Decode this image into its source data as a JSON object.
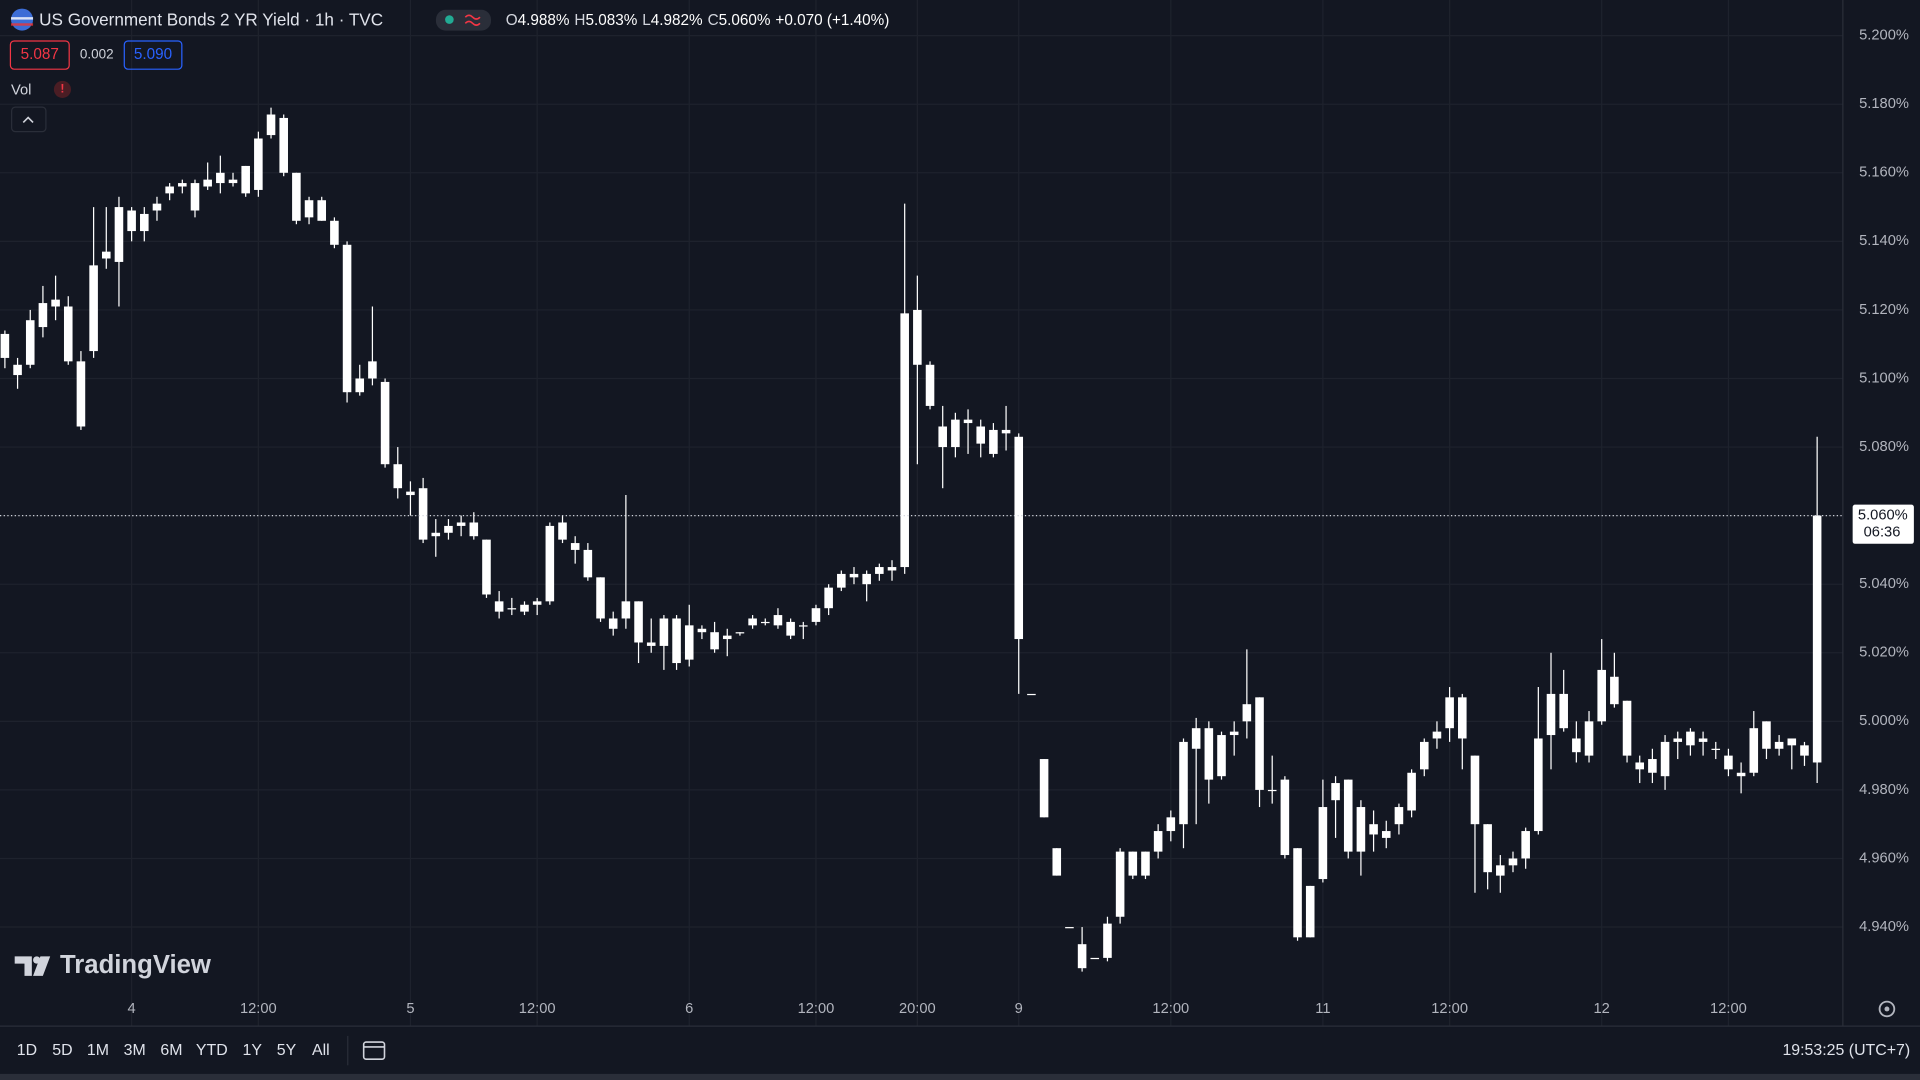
{
  "header": {
    "title": "US Government Bonds 2 YR Yield · 1h · TVC",
    "ohlc": [
      {
        "key": "O",
        "value": "4.988%"
      },
      {
        "key": "H",
        "value": "5.083%"
      },
      {
        "key": "L",
        "value": "4.982%"
      },
      {
        "key": "C",
        "value": "5.060%"
      }
    ],
    "change": "+0.070 (+1.40%)",
    "bid": "5.087",
    "spread": "0.002",
    "ask": "5.090",
    "volume_label": "Vol",
    "volume_warning": "!"
  },
  "logo": "TradingView",
  "timeframes": [
    "1D",
    "5D",
    "1M",
    "3M",
    "6M",
    "YTD",
    "1Y",
    "5Y",
    "All"
  ],
  "clock": "19:53:25 (UTC+7)",
  "chart_data": {
    "type": "candlestick",
    "color": "#ffffff",
    "grid": true,
    "ylim": [
      4.9111,
      5.2104
    ],
    "yticks": [
      {
        "value": 4.94,
        "label": "4.940%"
      },
      {
        "value": 4.96,
        "label": "4.960%"
      },
      {
        "value": 4.98,
        "label": "4.980%"
      },
      {
        "value": 5.0,
        "label": "5.000%"
      },
      {
        "value": 5.02,
        "label": "5.020%"
      },
      {
        "value": 5.04,
        "label": "5.040%"
      },
      {
        "value": 5.06,
        "label": "5.060%"
      },
      {
        "value": 5.08,
        "label": "5.080%"
      },
      {
        "value": 5.1,
        "label": "5.100%"
      },
      {
        "value": 5.12,
        "label": "5.120%"
      },
      {
        "value": 5.14,
        "label": "5.140%"
      },
      {
        "value": 5.16,
        "label": "5.160%"
      },
      {
        "value": 5.18,
        "label": "5.180%"
      },
      {
        "value": 5.2,
        "label": "5.200%"
      }
    ],
    "xticks": [
      {
        "value": 10,
        "label": "4"
      },
      {
        "value": 20,
        "label": "12:00"
      },
      {
        "value": 32,
        "label": "5"
      },
      {
        "value": 42,
        "label": "12:00"
      },
      {
        "value": 54,
        "label": "6"
      },
      {
        "value": 64,
        "label": "12:00"
      },
      {
        "value": 72,
        "label": "20:00"
      },
      {
        "value": 80,
        "label": "9"
      },
      {
        "value": 92,
        "label": "12:00"
      },
      {
        "value": 104,
        "label": "11"
      },
      {
        "value": 114,
        "label": "12:00"
      },
      {
        "value": 126,
        "label": "12"
      },
      {
        "value": 136,
        "label": "12:00"
      }
    ],
    "last_price": {
      "value": 5.06,
      "label": "5.060%"
    },
    "countdown": "06:36",
    "open": [
      5.113,
      5.104,
      5.104,
      5.115,
      5.121,
      5.121,
      5.105,
      5.108,
      5.135,
      5.134,
      5.143,
      5.143,
      5.149,
      5.154,
      5.156,
      5.149,
      5.156,
      5.157,
      5.158,
      5.162,
      5.155,
      5.171,
      5.176,
      5.16,
      5.147,
      5.152,
      5.146,
      5.139,
      5.096,
      5.105,
      5.099,
      5.075,
      5.067,
      5.068,
      5.054,
      5.055,
      5.057,
      5.058,
      5.053,
      5.035,
      5.033,
      5.034,
      5.034,
      5.035,
      5.058,
      5.052,
      5.05,
      5.042,
      5.03,
      5.03,
      5.035,
      5.023,
      5.022,
      5.03,
      5.018,
      5.027,
      5.026,
      5.024,
      5.026,
      5.028,
      5.029,
      5.028,
      5.029,
      5.028,
      5.029,
      5.033,
      5.039,
      5.043,
      5.04,
      5.043,
      5.045,
      5.045,
      5.12,
      5.104,
      5.086,
      5.08,
      5.088,
      5.086,
      5.085,
      5.084,
      5.083,
      5.008,
      4.989,
      4.963,
      4.94,
      4.928,
      4.931,
      4.931,
      4.943,
      4.962,
      4.955,
      4.962,
      4.968,
      4.97,
      4.992,
      4.998,
      4.984,
      4.997,
      5.0,
      5.007,
      4.98,
      4.983,
      4.963,
      4.937,
      4.954,
      4.977,
      4.983,
      4.962,
      4.97,
      4.968,
      4.97,
      4.974,
      4.986,
      4.995,
      4.998,
      5.007,
      4.99,
      4.97,
      4.958,
      4.958,
      4.96,
      4.968,
      4.996,
      5.008,
      4.995,
      4.99,
      5.0,
      5.013,
      5.006,
      4.988,
      4.989,
      4.984,
      4.995,
      4.993,
      4.995,
      4.992,
      4.99,
      4.985,
      4.985,
      5.0,
      4.992,
      4.995,
      4.993,
      4.988
    ],
    "high": [
      5.114,
      5.106,
      5.12,
      5.127,
      5.13,
      5.124,
      5.108,
      5.15,
      5.15,
      5.153,
      5.15,
      5.15,
      5.153,
      5.157,
      5.158,
      5.158,
      5.163,
      5.165,
      5.16,
      5.162,
      5.172,
      5.179,
      5.177,
      5.16,
      5.153,
      5.153,
      5.147,
      5.14,
      5.104,
      5.121,
      5.1,
      5.08,
      5.07,
      5.071,
      5.059,
      5.059,
      5.06,
      5.061,
      5.053,
      5.038,
      5.036,
      5.035,
      5.036,
      5.058,
      5.06,
      5.054,
      5.052,
      5.042,
      5.032,
      5.066,
      5.035,
      5.03,
      5.031,
      5.031,
      5.034,
      5.028,
      5.029,
      5.027,
      5.026,
      5.031,
      5.03,
      5.033,
      5.03,
      5.029,
      5.034,
      5.04,
      5.044,
      5.045,
      5.044,
      5.046,
      5.047,
      5.151,
      5.13,
      5.105,
      5.092,
      5.09,
      5.091,
      5.088,
      5.087,
      5.092,
      5.084,
      5.008,
      4.989,
      4.963,
      4.94,
      4.94,
      4.931,
      4.943,
      4.963,
      4.962,
      4.962,
      4.97,
      4.974,
      4.995,
      5.001,
      5.0,
      4.997,
      5.0,
      5.021,
      5.007,
      4.99,
      4.984,
      4.963,
      4.952,
      4.983,
      4.984,
      4.983,
      4.977,
      4.974,
      4.971,
      4.976,
      4.986,
      4.995,
      5.0,
      5.01,
      5.008,
      4.99,
      4.97,
      4.961,
      4.962,
      4.969,
      5.01,
      5.02,
      5.015,
      5.0,
      5.003,
      5.024,
      5.02,
      5.006,
      4.99,
      4.992,
      4.996,
      4.997,
      4.998,
      4.997,
      4.994,
      4.992,
      4.988,
      5.003,
      5.0,
      4.996,
      4.995,
      4.994,
      5.083
    ],
    "low": [
      5.103,
      5.097,
      5.103,
      5.112,
      5.117,
      5.104,
      5.085,
      5.106,
      5.132,
      5.121,
      5.14,
      5.14,
      5.146,
      5.152,
      5.154,
      5.147,
      5.155,
      5.154,
      5.156,
      5.153,
      5.153,
      5.17,
      5.159,
      5.145,
      5.145,
      5.146,
      5.138,
      5.093,
      5.095,
      5.098,
      5.074,
      5.065,
      5.06,
      5.052,
      5.048,
      5.053,
      5.054,
      5.053,
      5.036,
      5.03,
      5.031,
      5.031,
      5.031,
      5.034,
      5.052,
      5.046,
      5.041,
      5.029,
      5.025,
      5.027,
      5.017,
      5.02,
      5.015,
      5.015,
      5.016,
      5.024,
      5.02,
      5.019,
      5.025,
      5.027,
      5.028,
      5.027,
      5.024,
      5.024,
      5.028,
      5.031,
      5.038,
      5.04,
      5.035,
      5.041,
      5.041,
      5.043,
      5.075,
      5.091,
      5.068,
      5.077,
      5.078,
      5.077,
      5.077,
      5.079,
      5.008,
      5.008,
      4.972,
      4.955,
      4.94,
      4.927,
      4.931,
      4.93,
      4.941,
      4.954,
      4.954,
      4.96,
      4.965,
      4.963,
      4.97,
      4.976,
      4.983,
      4.99,
      4.995,
      4.975,
      4.976,
      4.96,
      4.936,
      4.937,
      4.953,
      4.966,
      4.96,
      4.955,
      4.962,
      4.963,
      4.967,
      4.972,
      4.984,
      4.992,
      4.994,
      4.986,
      4.95,
      4.951,
      4.95,
      4.956,
      4.957,
      4.967,
      4.986,
      4.997,
      4.988,
      4.988,
      4.999,
      5.004,
      4.988,
      4.982,
      4.982,
      4.98,
      4.989,
      4.99,
      4.99,
      4.989,
      4.984,
      4.979,
      4.984,
      4.989,
      4.99,
      4.986,
      4.987,
      4.982
    ],
    "close": [
      5.106,
      5.101,
      5.117,
      5.122,
      5.123,
      5.105,
      5.086,
      5.133,
      5.137,
      5.15,
      5.149,
      5.148,
      5.151,
      5.156,
      5.157,
      5.157,
      5.158,
      5.16,
      5.157,
      5.154,
      5.17,
      5.177,
      5.16,
      5.146,
      5.152,
      5.146,
      5.139,
      5.096,
      5.1,
      5.1,
      5.075,
      5.068,
      5.066,
      5.053,
      5.055,
      5.057,
      5.058,
      5.054,
      5.037,
      5.032,
      5.033,
      5.032,
      5.035,
      5.057,
      5.053,
      5.05,
      5.042,
      5.03,
      5.027,
      5.035,
      5.023,
      5.022,
      5.03,
      5.017,
      5.028,
      5.026,
      5.021,
      5.025,
      5.026,
      5.03,
      5.029,
      5.031,
      5.025,
      5.028,
      5.033,
      5.039,
      5.043,
      5.042,
      5.043,
      5.045,
      5.044,
      5.119,
      5.104,
      5.092,
      5.08,
      5.088,
      5.087,
      5.081,
      5.078,
      5.085,
      5.024,
      5.008,
      4.972,
      4.955,
      4.94,
      4.935,
      4.931,
      4.941,
      4.962,
      4.955,
      4.962,
      4.968,
      4.972,
      4.994,
      4.998,
      4.983,
      4.996,
      4.996,
      5.005,
      4.98,
      4.98,
      4.961,
      4.937,
      4.952,
      4.975,
      4.982,
      4.962,
      4.975,
      4.967,
      4.966,
      4.975,
      4.985,
      4.994,
      4.997,
      5.007,
      4.995,
      4.97,
      4.956,
      4.955,
      4.96,
      4.968,
      4.995,
      5.008,
      4.998,
      4.991,
      5.0,
      5.015,
      5.005,
      4.99,
      4.986,
      4.985,
      4.994,
      4.994,
      4.997,
      4.994,
      4.992,
      4.986,
      4.984,
      4.998,
      4.992,
      4.994,
      4.993,
      4.99,
      5.06
    ]
  }
}
